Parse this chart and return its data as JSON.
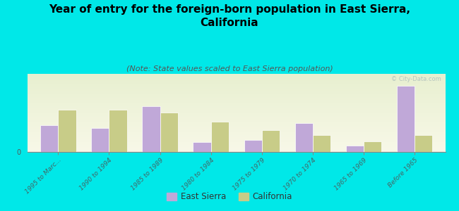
{
  "title": "Year of entry for the foreign-born population in East Sierra,\nCalifornia",
  "subtitle": "(Note: State values scaled to East Sierra population)",
  "categories": [
    "1995 to Marc...",
    "1990 to 1994",
    "1985 to 1989",
    "1980 to 1984",
    "1975 to 1979",
    "1970 to 1974",
    "1965 to 1969",
    "Before 1965"
  ],
  "east_sierra": [
    22,
    20,
    38,
    8,
    10,
    24,
    5,
    55
  ],
  "california": [
    35,
    35,
    33,
    25,
    18,
    14,
    9,
    14
  ],
  "east_sierra_color": "#c0a8d8",
  "california_color": "#c8cc88",
  "background_outer": "#00e8e8",
  "background_chart_top": "#e8f0d0",
  "background_chart_bottom": "#f8f8e8",
  "bar_width": 0.35,
  "ylim": [
    0,
    65
  ],
  "title_fontsize": 11,
  "subtitle_fontsize": 8,
  "legend_labels": [
    "East Sierra",
    "California"
  ],
  "watermark": "© City-Data.com"
}
